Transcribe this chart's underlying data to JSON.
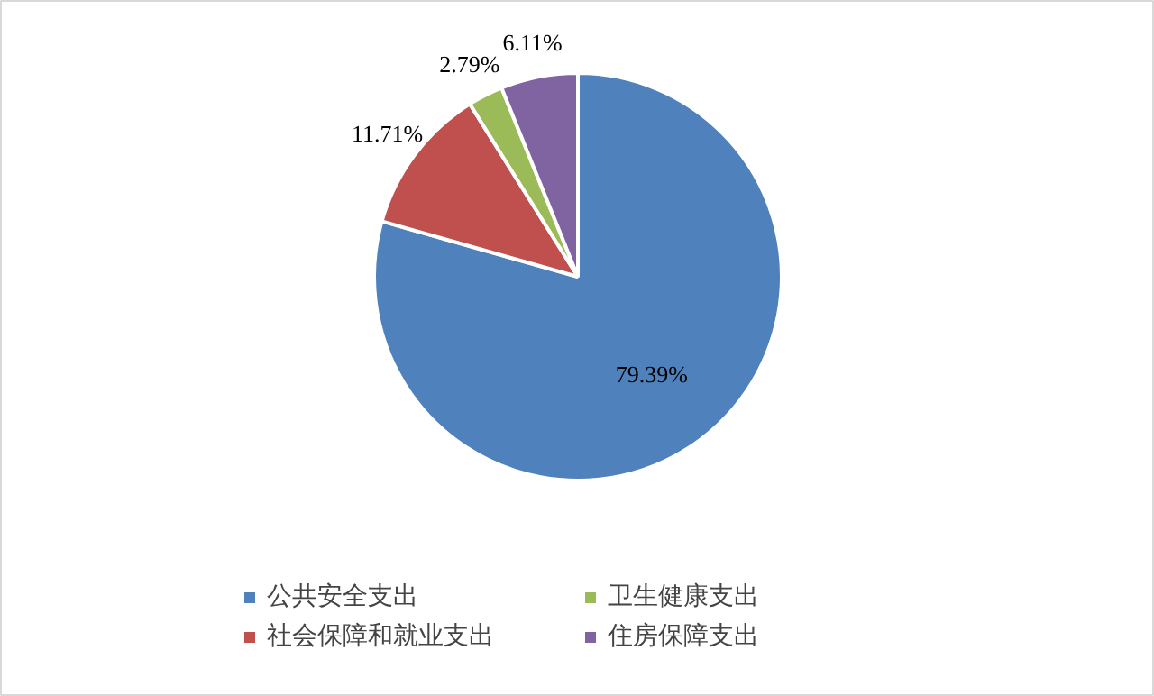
{
  "chart_data": {
    "type": "pie",
    "categories": [
      "公共安全支出",
      "社会保障和就业支出",
      "卫生健康支出",
      "住房保障支出"
    ],
    "values": [
      79.39,
      11.71,
      2.79,
      6.11
    ],
    "colors": [
      "#4f81bd",
      "#c0504d",
      "#9bbb59",
      "#8064a2"
    ],
    "value_labels": [
      "79.39%",
      "11.71%",
      "2.79%",
      "6.11%"
    ],
    "legend": "bottom"
  }
}
